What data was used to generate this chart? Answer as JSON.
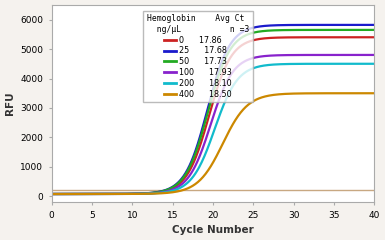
{
  "xlabel": "Cycle Number",
  "ylabel": "RFU",
  "xlim": [
    0,
    40
  ],
  "ylim": [
    -200,
    6500
  ],
  "yticks": [
    0,
    1000,
    2000,
    3000,
    4000,
    5000,
    6000
  ],
  "xticks": [
    0,
    5,
    10,
    15,
    20,
    25,
    30,
    35,
    40
  ],
  "background_color": "#f5f2ee",
  "plot_bg": "#ffffff",
  "series": [
    {
      "label": "0",
      "avg_ct": "17.86",
      "color": "#cc2222",
      "plateau": 5400,
      "ct": 19.5,
      "slope": 0.72,
      "baseline": 80
    },
    {
      "label": "25",
      "avg_ct": "17.68",
      "color": "#1a1acc",
      "plateau": 5820,
      "ct": 19.3,
      "slope": 0.72,
      "baseline": 80
    },
    {
      "label": "50",
      "avg_ct": "17.73",
      "color": "#22aa22",
      "plateau": 5650,
      "ct": 19.35,
      "slope": 0.72,
      "baseline": 80
    },
    {
      "label": "100",
      "avg_ct": "17.93",
      "color": "#8822cc",
      "plateau": 4800,
      "ct": 19.7,
      "slope": 0.72,
      "baseline": 80
    },
    {
      "label": "200",
      "avg_ct": "18.10",
      "color": "#11bbcc",
      "plateau": 4500,
      "ct": 20.2,
      "slope": 0.7,
      "baseline": 80
    },
    {
      "label": "400",
      "avg_ct": "18.50",
      "color": "#cc8800",
      "plateau": 3500,
      "ct": 21.2,
      "slope": 0.65,
      "baseline": 80
    }
  ],
  "threshold_color": "#c8a882",
  "threshold_y": 230,
  "legend_col1_title": "Hemoglobin\nng/μL",
  "legend_col2_title": "Avg Ct\nn =3"
}
